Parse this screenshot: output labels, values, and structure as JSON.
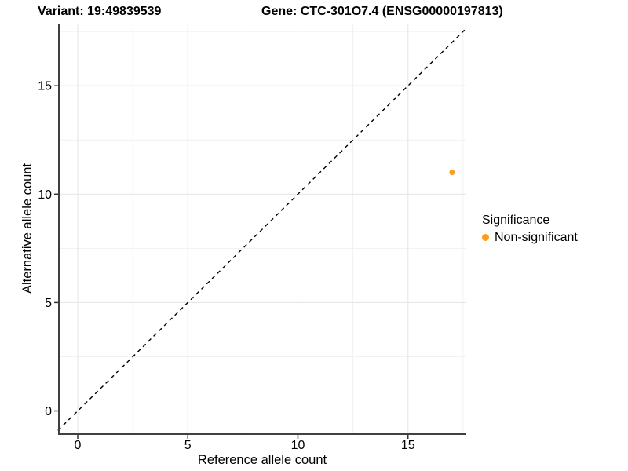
{
  "title": {
    "variant": "Variant: 19:49839539",
    "gene": "Gene: CTC-301O7.4 (ENSG00000197813)"
  },
  "axes": {
    "x": {
      "label": "Reference allele count",
      "ticks": [
        0,
        5,
        10,
        15
      ]
    },
    "y": {
      "label": "Alternative allele count",
      "ticks": [
        0,
        5,
        10,
        15
      ]
    }
  },
  "legend": {
    "title": "Significance",
    "items": [
      {
        "label": "Non-significant",
        "color": "#FA9E1C"
      }
    ]
  },
  "colors": {
    "point_orange": "#FA9E1C",
    "grid_major": "#E7E7E7",
    "grid_minor": "#F1F1F1",
    "axis_line": "#404040",
    "tick_mark": "#333333",
    "reference_line": "#000000"
  },
  "chart_data": {
    "type": "scatter",
    "title": "Variant: 19:49839539   Gene: CTC-301O7.4 (ENSG00000197813)",
    "xlabel": "Reference allele count",
    "ylabel": "Alternative allele count",
    "xlim": [
      -0.9,
      17.6
    ],
    "ylim": [
      -1.1,
      17.9
    ],
    "x_ticks": [
      0,
      5,
      10,
      15
    ],
    "y_ticks": [
      0,
      5,
      10,
      15
    ],
    "minor_tick_interval": 2.5,
    "grid": "on",
    "legend_position": "right",
    "series": [
      {
        "name": "Non-significant",
        "color": "#FA9E1C",
        "points": [
          {
            "x": 17,
            "y": 11
          }
        ]
      }
    ],
    "reference_line": {
      "slope": 1,
      "intercept": 0,
      "linetype": "dashed",
      "color": "#000000"
    }
  }
}
